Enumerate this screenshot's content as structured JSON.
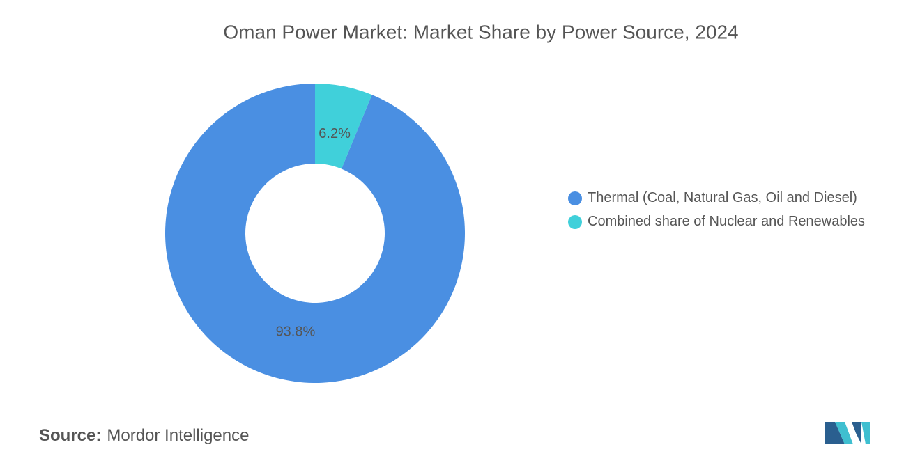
{
  "chart_data": {
    "type": "donut",
    "title": "Oman Power Market: Market Share by Power Source, 2024",
    "categories": [
      "Thermal (Coal, Natural Gas, Oil and Diesel)",
      "Combined share of Nuclear and Renewables"
    ],
    "values": [
      93.8,
      6.2
    ],
    "value_labels": [
      "93.8%",
      "6.2%"
    ],
    "colors": [
      "#4a8fe2",
      "#40d0da"
    ]
  },
  "source": {
    "label": "Source:",
    "text": "Mordor Intelligence"
  }
}
